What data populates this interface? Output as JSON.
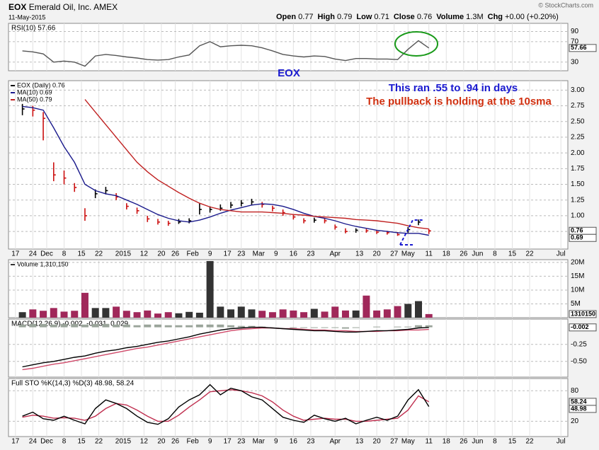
{
  "header": {
    "symbol": "EOX",
    "company": "Emerald Oil, Inc.",
    "exchange": "AMEX",
    "date": "11-May-2015",
    "quote": [
      {
        "label": "Open",
        "value": "0.77"
      },
      {
        "label": "High",
        "value": "0.79"
      },
      {
        "label": "Low",
        "value": "0.71"
      },
      {
        "label": "Close",
        "value": "0.76"
      },
      {
        "label": "Volume",
        "value": "1.3M"
      },
      {
        "label": "Chg",
        "value": "+0.00 (+0.20%)"
      }
    ],
    "credit": "© StockCharts.com"
  },
  "annotations": {
    "symbol_note": "EOX",
    "note_1": "This ran .55 to .94 in days",
    "note_2": "The pullback is holding at the 10sma"
  },
  "chart_data": [
    {
      "type": "line",
      "title": "RSI(10) 57.66",
      "x": [
        2,
        5,
        8,
        11,
        14,
        17,
        20,
        23,
        26,
        29,
        32,
        35,
        38,
        41,
        44,
        47,
        50,
        53,
        56,
        59,
        62,
        65,
        68,
        71,
        74,
        77,
        80,
        83,
        86,
        89,
        92,
        95,
        98,
        101,
        104,
        107,
        110,
        113,
        116,
        119
      ],
      "xlim": [
        -2,
        159
      ],
      "ylim": [
        13,
        106
      ],
      "yticks": [
        90,
        70,
        30
      ],
      "series": [
        {
          "color": "#555555",
          "last_label": true,
          "values": [
            52,
            50,
            46,
            30,
            32,
            30,
            22,
            42,
            45,
            43,
            40,
            38,
            35,
            34,
            35,
            40,
            44,
            62,
            70,
            60,
            62,
            63,
            62,
            58,
            52,
            45,
            42,
            40,
            42,
            41,
            36,
            33,
            37,
            37,
            36,
            36,
            35,
            55,
            72,
            57.66
          ]
        }
      ]
    },
    {
      "type": "ohlc",
      "x": [
        2,
        5,
        8,
        11,
        14,
        17,
        20,
        23,
        26,
        29,
        32,
        35,
        38,
        41,
        44,
        47,
        50,
        53,
        56,
        59,
        62,
        65,
        68,
        71,
        74,
        77,
        80,
        83,
        86,
        89,
        92,
        95,
        98,
        101,
        104,
        107,
        110,
        113,
        116,
        119
      ],
      "xlim": [
        -2,
        159
      ],
      "ylim": [
        0.47,
        3.15
      ],
      "yticks": [
        {
          "value": 3,
          "label": "3.00"
        },
        2.75,
        {
          "value": 2.5,
          "label": "2.50"
        },
        2.25,
        {
          "value": 2,
          "label": "2.00"
        },
        1.75,
        {
          "value": 1.5,
          "label": "1.50"
        },
        1.25,
        {
          "value": 1,
          "label": "1.00"
        },
        0.75
      ],
      "xticks": [
        {
          "value": 0,
          "label": "17"
        },
        {
          "value": 5,
          "label": "24"
        },
        {
          "value": 9,
          "label": "Dec"
        },
        {
          "value": 14,
          "label": "8"
        },
        {
          "value": 19,
          "label": "15"
        },
        {
          "value": 24,
          "label": "22"
        },
        {
          "value": 31,
          "label": "2015"
        },
        {
          "value": 37,
          "label": "12"
        },
        {
          "value": 42,
          "label": "20"
        },
        {
          "value": 46,
          "label": "26"
        },
        {
          "value": 51,
          "label": "Feb"
        },
        {
          "value": 56,
          "label": "9"
        },
        {
          "value": 61,
          "label": "17"
        },
        {
          "value": 65,
          "label": "23"
        },
        {
          "value": 70,
          "label": "Mar"
        },
        {
          "value": 75,
          "label": "9"
        },
        {
          "value": 80,
          "label": "16"
        },
        {
          "value": 85,
          "label": "23"
        },
        {
          "value": 92,
          "label": "Apr"
        },
        {
          "value": 99,
          "label": "13"
        },
        {
          "value": 104,
          "label": "20"
        },
        {
          "value": 109,
          "label": "27"
        },
        {
          "value": 113,
          "label": "May"
        },
        {
          "value": 119,
          "label": "11"
        },
        {
          "value": 124,
          "label": "18"
        },
        {
          "value": 129,
          "label": "26"
        },
        {
          "value": 133,
          "label": "Jun"
        },
        {
          "value": 138,
          "label": "8"
        },
        {
          "value": 143,
          "label": "15"
        },
        {
          "value": 148,
          "label": "22"
        },
        {
          "value": 157,
          "label": "Jul"
        }
      ],
      "series": [
        {
          "name": "EOX (Daily) 0.76",
          "style": "ohlc",
          "up_color": "#000000",
          "down_color": "#cc1111",
          "last_label": true,
          "high": [
            2.78,
            2.75,
            2.65,
            1.85,
            1.72,
            1.52,
            1.12,
            1.42,
            1.46,
            1.36,
            1.2,
            1.13,
            1.0,
            0.95,
            0.92,
            0.95,
            0.96,
            1.2,
            1.15,
            1.18,
            1.22,
            1.25,
            1.27,
            1.22,
            1.16,
            1.1,
            1.02,
            0.96,
            0.97,
            0.96,
            0.86,
            0.8,
            0.8,
            0.79,
            0.77,
            0.76,
            0.74,
            0.82,
            0.94,
            0.79
          ],
          "low": [
            2.6,
            2.58,
            2.2,
            1.55,
            1.5,
            1.38,
            0.92,
            1.28,
            1.34,
            1.25,
            1.1,
            1.03,
            0.9,
            0.86,
            0.84,
            0.87,
            0.88,
            1.02,
            1.05,
            1.08,
            1.12,
            1.15,
            1.17,
            1.13,
            1.07,
            1.0,
            0.94,
            0.88,
            0.89,
            0.88,
            0.78,
            0.72,
            0.73,
            0.73,
            0.71,
            0.7,
            0.68,
            0.73,
            0.85,
            0.71
          ],
          "close": [
            2.7,
            2.68,
            2.55,
            1.65,
            1.6,
            1.45,
            1.0,
            1.35,
            1.4,
            1.3,
            1.15,
            1.08,
            0.95,
            0.9,
            0.88,
            0.9,
            0.92,
            1.1,
            1.1,
            1.12,
            1.17,
            1.2,
            1.22,
            1.18,
            1.12,
            1.05,
            0.98,
            0.92,
            0.93,
            0.92,
            0.82,
            0.75,
            0.77,
            0.76,
            0.74,
            0.73,
            0.7,
            0.78,
            0.9,
            0.76
          ]
        },
        {
          "name": "MA(10) 0.69",
          "color": "#1a1a8c",
          "last_label": true,
          "values": [
            2.74,
            2.72,
            2.68,
            2.4,
            2.1,
            1.85,
            1.5,
            1.4,
            1.35,
            1.32,
            1.25,
            1.18,
            1.1,
            1.02,
            0.96,
            0.92,
            0.9,
            0.93,
            0.98,
            1.04,
            1.09,
            1.13,
            1.17,
            1.19,
            1.18,
            1.15,
            1.1,
            1.04,
            0.99,
            0.96,
            0.92,
            0.87,
            0.83,
            0.8,
            0.77,
            0.75,
            0.73,
            0.72,
            0.72,
            0.69
          ]
        },
        {
          "name": "MA(50) 0.79",
          "color": "#c02020",
          "values": [
            null,
            null,
            null,
            null,
            null,
            null,
            2.85,
            2.65,
            2.45,
            2.25,
            2.05,
            1.85,
            1.7,
            1.57,
            1.47,
            1.37,
            1.28,
            1.2,
            1.14,
            1.1,
            1.08,
            1.06,
            1.06,
            1.06,
            1.05,
            1.04,
            1.02,
            1.01,
            0.99,
            0.98,
            0.97,
            0.96,
            0.94,
            0.93,
            0.92,
            0.9,
            0.88,
            0.84,
            0.81,
            0.79
          ]
        }
      ]
    },
    {
      "type": "bar",
      "x": [
        2,
        5,
        8,
        11,
        14,
        17,
        20,
        23,
        26,
        29,
        32,
        35,
        38,
        41,
        44,
        47,
        50,
        53,
        56,
        59,
        62,
        65,
        68,
        71,
        74,
        77,
        80,
        83,
        86,
        89,
        92,
        95,
        98,
        101,
        104,
        107,
        110,
        113,
        116,
        119
      ],
      "xlim": [
        -2,
        159
      ],
      "ylim": [
        0,
        21000000
      ],
      "yticks": [
        {
          "value": 20000000,
          "label": "20M"
        },
        {
          "value": 15000000,
          "label": "15M"
        },
        {
          "value": 10000000,
          "label": "10M"
        },
        {
          "value": 5000000,
          "label": "5M"
        }
      ],
      "series": [
        {
          "name": "Volume 1,310,150",
          "style": "bar",
          "up_color": "#333333",
          "down_color": "#a0285a",
          "last_label": true,
          "values": [
            2000000,
            3000000,
            2500000,
            3500000,
            2200000,
            2500000,
            9000000,
            3500000,
            3500000,
            4000000,
            2500000,
            2000000,
            2600000,
            1500000,
            2000000,
            1600000,
            2100000,
            1800000,
            20500000,
            4000000,
            3000000,
            4000000,
            3000000,
            2500000,
            2000000,
            3000000,
            2600000,
            2000000,
            3200000,
            2200000,
            4000000,
            2600000,
            2600000,
            8000000,
            2600000,
            3000000,
            4200000,
            5000000,
            6000000,
            1310150
          ]
        }
      ]
    },
    {
      "type": "line",
      "title": "MACD(12,26,9) -0.002, -0.031, 0.029",
      "x": [
        2,
        5,
        8,
        11,
        14,
        17,
        20,
        23,
        26,
        29,
        32,
        35,
        38,
        41,
        44,
        47,
        50,
        53,
        56,
        59,
        62,
        65,
        68,
        71,
        74,
        77,
        80,
        83,
        86,
        89,
        92,
        95,
        98,
        101,
        104,
        107,
        110,
        113,
        116,
        119
      ],
      "xlim": [
        -2,
        159
      ],
      "ylim": [
        -0.73,
        0.12
      ],
      "yticks": [
        -0.25,
        {
          "value": -0.5,
          "label": "-0.50"
        }
      ],
      "series": [
        {
          "style": "histogram",
          "color": "#9aa49a",
          "values": [
            0.04,
            0.05,
            0.05,
            0.04,
            0.05,
            0.05,
            0.04,
            0.05,
            0.05,
            0.04,
            0.04,
            0.03,
            0.04,
            0.04,
            0.03,
            0.03,
            0.03,
            0.04,
            0.04,
            0.04,
            0.03,
            0.02,
            0.02,
            0.01,
            0.0,
            0.0,
            -0.01,
            -0.01,
            -0.01,
            -0.01,
            -0.01,
            -0.02,
            -0.01,
            0.0,
            0.01,
            0.0,
            0.01,
            0.01,
            0.03,
            0.029
          ]
        },
        {
          "color": "#d04a6a",
          "values": [
            -0.62,
            -0.6,
            -0.57,
            -0.54,
            -0.52,
            -0.49,
            -0.46,
            -0.43,
            -0.4,
            -0.37,
            -0.34,
            -0.31,
            -0.29,
            -0.26,
            -0.23,
            -0.2,
            -0.17,
            -0.14,
            -0.11,
            -0.08,
            -0.05,
            -0.03,
            -0.02,
            -0.01,
            -0.01,
            -0.02,
            -0.02,
            -0.03,
            -0.04,
            -0.04,
            -0.05,
            -0.05,
            -0.06,
            -0.06,
            -0.06,
            -0.05,
            -0.05,
            -0.04,
            -0.04,
            -0.031
          ]
        },
        {
          "color": "#000000",
          "last_label": true,
          "values": [
            -0.58,
            -0.55,
            -0.52,
            -0.5,
            -0.47,
            -0.44,
            -0.42,
            -0.38,
            -0.35,
            -0.33,
            -0.3,
            -0.28,
            -0.25,
            -0.22,
            -0.2,
            -0.17,
            -0.14,
            -0.1,
            -0.07,
            -0.04,
            -0.02,
            -0.01,
            0.0,
            0.0,
            -0.01,
            -0.02,
            -0.03,
            -0.04,
            -0.05,
            -0.05,
            -0.06,
            -0.07,
            -0.07,
            -0.06,
            -0.05,
            -0.05,
            -0.04,
            -0.03,
            -0.01,
            -0.002
          ]
        }
      ]
    },
    {
      "type": "line",
      "title": "Full STO %K(14,3) %D(3) 48.98, 58.24",
      "x": [
        2,
        5,
        8,
        11,
        14,
        17,
        20,
        23,
        26,
        29,
        32,
        35,
        38,
        41,
        44,
        47,
        50,
        53,
        56,
        59,
        62,
        65,
        68,
        71,
        74,
        77,
        80,
        83,
        86,
        89,
        92,
        95,
        98,
        101,
        104,
        107,
        110,
        113,
        116,
        119
      ],
      "xlim": [
        -2,
        159
      ],
      "ylim": [
        -10,
        104
      ],
      "yticks": [
        80,
        20
      ],
      "xticks": [
        {
          "value": 0,
          "label": "17"
        },
        {
          "value": 5,
          "label": "24"
        },
        {
          "value": 9,
          "label": "Dec"
        },
        {
          "value": 14,
          "label": "8"
        },
        {
          "value": 19,
          "label": "15"
        },
        {
          "value": 24,
          "label": "22"
        },
        {
          "value": 31,
          "label": "2015"
        },
        {
          "value": 37,
          "label": "12"
        },
        {
          "value": 42,
          "label": "20"
        },
        {
          "value": 46,
          "label": "26"
        },
        {
          "value": 51,
          "label": "Feb"
        },
        {
          "value": 56,
          "label": "9"
        },
        {
          "value": 61,
          "label": "17"
        },
        {
          "value": 65,
          "label": "23"
        },
        {
          "value": 70,
          "label": "Mar"
        },
        {
          "value": 75,
          "label": "9"
        },
        {
          "value": 80,
          "label": "16"
        },
        {
          "value": 85,
          "label": "23"
        },
        {
          "value": 92,
          "label": "Apr"
        },
        {
          "value": 99,
          "label": "13"
        },
        {
          "value": 104,
          "label": "20"
        },
        {
          "value": 109,
          "label": "27"
        },
        {
          "value": 113,
          "label": "May"
        },
        {
          "value": 119,
          "label": "11"
        },
        {
          "value": 124,
          "label": "18"
        },
        {
          "value": 129,
          "label": "26"
        },
        {
          "value": 133,
          "label": "Jun"
        },
        {
          "value": 138,
          "label": "8"
        },
        {
          "value": 143,
          "label": "15"
        },
        {
          "value": 148,
          "label": "22"
        },
        {
          "value": 157,
          "label": "Jul"
        }
      ],
      "series": [
        {
          "color": "#c03050",
          "last_label": true,
          "values": [
            28,
            32,
            30,
            26,
            27,
            26,
            22,
            30,
            45,
            55,
            52,
            42,
            30,
            20,
            20,
            32,
            48,
            62,
            78,
            80,
            82,
            80,
            76,
            70,
            58,
            42,
            30,
            22,
            24,
            26,
            24,
            24,
            20,
            20,
            22,
            24,
            26,
            42,
            70,
            58.24
          ]
        },
        {
          "color": "#000000",
          "last_label": true,
          "values": [
            30,
            38,
            25,
            22,
            30,
            22,
            15,
            45,
            62,
            55,
            45,
            30,
            18,
            14,
            25,
            48,
            62,
            72,
            92,
            72,
            85,
            80,
            68,
            62,
            45,
            28,
            22,
            18,
            32,
            25,
            20,
            26,
            15,
            22,
            28,
            22,
            30,
            62,
            82,
            48.98
          ]
        }
      ]
    }
  ]
}
